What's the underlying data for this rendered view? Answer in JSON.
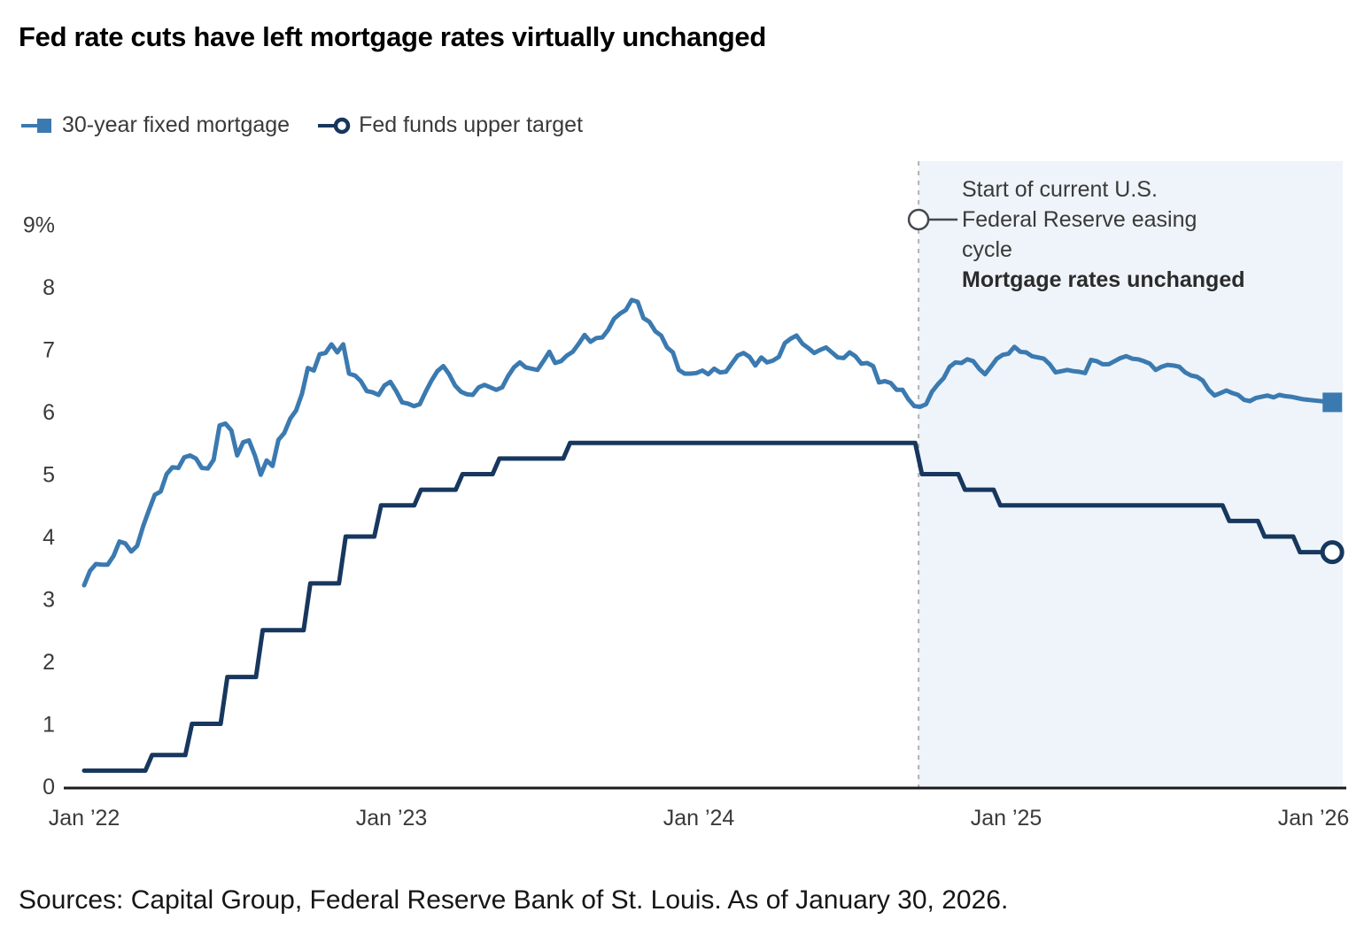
{
  "title": "Fed rate cuts have left mortgage rates virtually unchanged",
  "legend": {
    "items": [
      {
        "label": "30-year fixed mortgage",
        "marker": "filled-square"
      },
      {
        "label": "Fed funds upper target",
        "marker": "open-circle"
      }
    ]
  },
  "annotation": {
    "lines": [
      "Start of current U.S.",
      "Federal Reserve easing",
      "cycle"
    ],
    "bold_line": "Mortgage rates unchanged"
  },
  "source_note": "Sources: Capital Group, Federal Reserve Bank of St. Louis. As of January 30, 2026.",
  "colors": {
    "mortgage_line": "#3b7ab0",
    "fed_funds_line": "#17375e",
    "shade": "#eef4f9",
    "dashed_line": "#b3b3b3",
    "axis_line": "#1a1a1a",
    "tick_text": "#3a3a3a",
    "annotation_pointer": "#44494e"
  },
  "chart_data": {
    "type": "line",
    "title": "Fed rate cuts have left mortgage rates virtually unchanged",
    "xlabel": "",
    "ylabel": "%",
    "ylim": [
      0,
      9.6
    ],
    "grid": false,
    "legend_position": "top-left",
    "x_ticks": [
      {
        "t": 0,
        "label": "Jan ’22"
      },
      {
        "t": 1,
        "label": "Jan ’23"
      },
      {
        "t": 2,
        "label": "Jan ’24"
      },
      {
        "t": 3,
        "label": "Jan ’25"
      },
      {
        "t": 4,
        "label": "Jan ’26"
      }
    ],
    "y_ticks": [
      {
        "v": 0,
        "label": "0"
      },
      {
        "v": 1,
        "label": "1"
      },
      {
        "v": 2,
        "label": "2"
      },
      {
        "v": 3,
        "label": "3"
      },
      {
        "v": 4,
        "label": "4"
      },
      {
        "v": 5,
        "label": "5"
      },
      {
        "v": 6,
        "label": "6"
      },
      {
        "v": 7,
        "label": "7"
      },
      {
        "v": 8,
        "label": "8"
      },
      {
        "v": 9,
        "label": "9%"
      }
    ],
    "easing_cycle_start_t": 2.715,
    "shaded_region": {
      "from_t": 2.715,
      "to_end": true
    },
    "series": [
      {
        "name": "30-year fixed mortgage",
        "color": "#3b7ab0",
        "marker": "filled-square",
        "x_start_year": 2022.0,
        "x_step_years": 0.019157,
        "values": [
          3.22,
          3.45,
          3.56,
          3.55,
          3.55,
          3.69,
          3.92,
          3.89,
          3.76,
          3.85,
          4.16,
          4.42,
          4.67,
          4.72,
          5.0,
          5.11,
          5.1,
          5.27,
          5.3,
          5.25,
          5.1,
          5.09,
          5.23,
          5.78,
          5.81,
          5.7,
          5.3,
          5.51,
          5.54,
          5.3,
          4.99,
          5.22,
          5.13,
          5.55,
          5.66,
          5.89,
          6.02,
          6.29,
          6.7,
          6.66,
          6.92,
          6.94,
          7.08,
          6.95,
          7.08,
          6.61,
          6.58,
          6.49,
          6.33,
          6.31,
          6.27,
          6.42,
          6.48,
          6.33,
          6.15,
          6.13,
          6.09,
          6.12,
          6.32,
          6.5,
          6.65,
          6.73,
          6.6,
          6.42,
          6.32,
          6.28,
          6.27,
          6.39,
          6.43,
          6.39,
          6.35,
          6.39,
          6.57,
          6.71,
          6.79,
          6.71,
          6.69,
          6.67,
          6.81,
          6.96,
          6.78,
          6.81,
          6.9,
          6.96,
          7.09,
          7.23,
          7.12,
          7.18,
          7.19,
          7.31,
          7.49,
          7.57,
          7.63,
          7.79,
          7.76,
          7.5,
          7.44,
          7.29,
          7.22,
          7.03,
          6.95,
          6.67,
          6.61,
          6.61,
          6.62,
          6.66,
          6.6,
          6.69,
          6.63,
          6.64,
          6.77,
          6.9,
          6.94,
          6.88,
          6.74,
          6.87,
          6.79,
          6.82,
          6.88,
          7.1,
          7.17,
          7.22,
          7.09,
          7.02,
          6.94,
          6.99,
          7.03,
          6.95,
          6.87,
          6.86,
          6.95,
          6.89,
          6.77,
          6.78,
          6.73,
          6.47,
          6.49,
          6.46,
          6.35,
          6.35,
          6.2,
          6.09,
          6.08,
          6.12,
          6.32,
          6.44,
          6.54,
          6.72,
          6.79,
          6.78,
          6.84,
          6.81,
          6.69,
          6.6,
          6.72,
          6.85,
          6.91,
          6.93,
          7.04,
          6.96,
          6.95,
          6.89,
          6.87,
          6.85,
          6.76,
          6.63,
          6.65,
          6.67,
          6.65,
          6.64,
          6.62,
          6.83,
          6.81,
          6.76,
          6.76,
          6.81,
          6.86,
          6.89,
          6.85,
          6.84,
          6.81,
          6.77,
          6.67,
          6.72,
          6.75,
          6.74,
          6.72,
          6.63,
          6.58,
          6.56,
          6.5,
          6.35,
          6.26,
          6.3,
          6.34,
          6.3,
          6.27,
          6.19,
          6.17,
          6.22,
          6.24,
          6.26,
          6.23,
          6.27,
          6.25,
          6.24,
          6.22,
          6.2,
          6.19,
          6.18,
          6.17,
          6.16,
          6.15
        ]
      },
      {
        "name": "Fed funds upper target",
        "color": "#17375e",
        "marker": "open-circle",
        "step_changes": [
          [
            0.0,
            0.25
          ],
          [
            0.21,
            0.5
          ],
          [
            0.34,
            1.0
          ],
          [
            0.455,
            1.75
          ],
          [
            0.57,
            2.5
          ],
          [
            0.725,
            3.25
          ],
          [
            0.84,
            4.0
          ],
          [
            0.955,
            4.5
          ],
          [
            1.085,
            4.75
          ],
          [
            1.22,
            5.0
          ],
          [
            1.34,
            5.25
          ],
          [
            1.57,
            5.5
          ],
          [
            2.715,
            5.0
          ],
          [
            2.855,
            4.75
          ],
          [
            2.97,
            4.5
          ],
          [
            3.715,
            4.25
          ],
          [
            3.83,
            4.0
          ],
          [
            3.945,
            3.75
          ]
        ],
        "end_t": 4.061
      }
    ]
  }
}
